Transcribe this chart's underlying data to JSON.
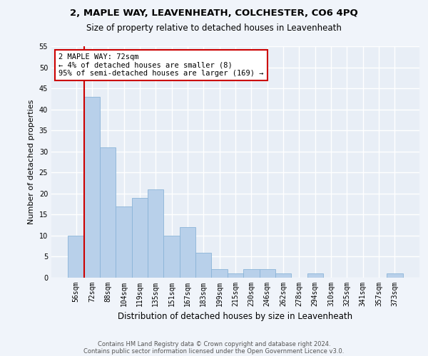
{
  "title1": "2, MAPLE WAY, LEAVENHEATH, COLCHESTER, CO6 4PQ",
  "title2": "Size of property relative to detached houses in Leavenheath",
  "xlabel": "Distribution of detached houses by size in Leavenheath",
  "ylabel": "Number of detached properties",
  "categories": [
    "56sqm",
    "72sqm",
    "88sqm",
    "104sqm",
    "119sqm",
    "135sqm",
    "151sqm",
    "167sqm",
    "183sqm",
    "199sqm",
    "215sqm",
    "230sqm",
    "246sqm",
    "262sqm",
    "278sqm",
    "294sqm",
    "310sqm",
    "325sqm",
    "341sqm",
    "357sqm",
    "373sqm"
  ],
  "values": [
    10,
    43,
    31,
    17,
    19,
    21,
    10,
    12,
    6,
    2,
    1,
    2,
    2,
    1,
    0,
    1,
    0,
    0,
    0,
    0,
    1
  ],
  "bar_color": "#b8d0ea",
  "bar_edge_color": "#8ab4d8",
  "vline_x_index": 1,
  "vline_color": "#cc0000",
  "annotation_text": "2 MAPLE WAY: 72sqm\n← 4% of detached houses are smaller (8)\n95% of semi-detached houses are larger (169) →",
  "annotation_box_edgecolor": "#cc0000",
  "ylim": [
    0,
    55
  ],
  "yticks": [
    0,
    5,
    10,
    15,
    20,
    25,
    30,
    35,
    40,
    45,
    50,
    55
  ],
  "bg_color": "#e8eef6",
  "grid_color": "#ffffff",
  "footer1": "Contains HM Land Registry data © Crown copyright and database right 2024.",
  "footer2": "Contains public sector information licensed under the Open Government Licence v3.0."
}
